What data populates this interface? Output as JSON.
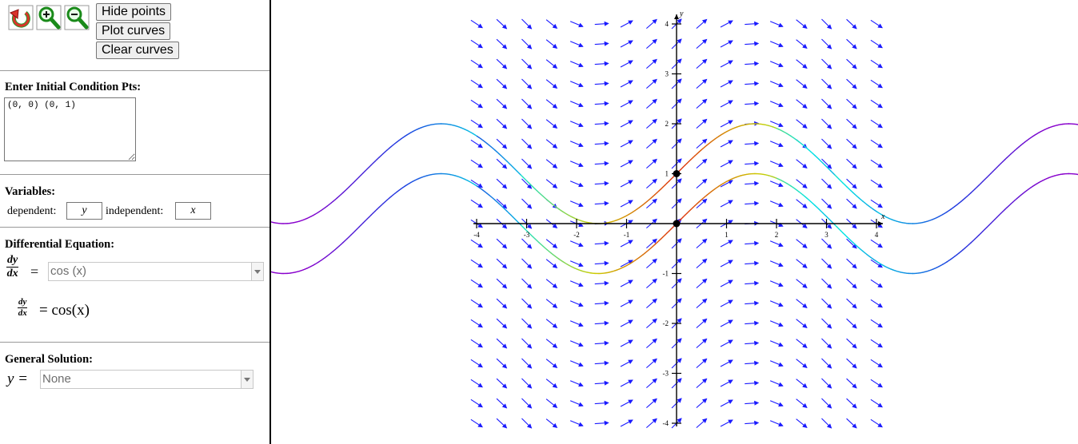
{
  "toolbar": {
    "icons": [
      "reset-icon",
      "zoom-in-icon",
      "zoom-out-icon"
    ],
    "hide_points_label": "Hide points",
    "plot_curves_label": "Plot curves",
    "clear_curves_label": "Clear curves"
  },
  "initial_conditions": {
    "title": "Enter Initial Condition Pts:",
    "value": "(0, 0) (0, 1)"
  },
  "variables": {
    "title": "Variables:",
    "dependent_label": "dependent:",
    "dependent_value": "y",
    "independent_label": "independent:",
    "independent_value": "x"
  },
  "equation": {
    "title": "Differential Equation:",
    "dy": "dy",
    "dx": "dx",
    "eq": "=",
    "input_value": "cos (x)",
    "rendered_rhs": "= cos(x)"
  },
  "general_solution": {
    "title": "General Solution:",
    "y_label": "y =",
    "value": "None"
  },
  "colors": {
    "vector_field": "#1a1aff",
    "axis": "#000000",
    "solution_gradient": [
      "#8800cc",
      "#1f3be0",
      "#00e5e5",
      "#cccc00",
      "#e03010"
    ]
  },
  "chart_data": {
    "type": "line",
    "title": "",
    "xlabel": "x",
    "ylabel": "y",
    "xlim": [
      -4,
      4
    ],
    "ylim": [
      -4,
      4
    ],
    "x_ticks": [
      "-4",
      "-3",
      "-2",
      "-1",
      "1",
      "2",
      "3",
      "4"
    ],
    "y_ticks": [
      "4",
      "3",
      "2",
      "1",
      "-1",
      "-2",
      "-3",
      "-4"
    ],
    "slope_field": "cos(x)",
    "initial_points": [
      [
        0,
        0
      ],
      [
        0,
        1
      ]
    ],
    "series": [
      {
        "initial_point": [
          0,
          0
        ],
        "function": "sin(x)"
      },
      {
        "initial_point": [
          0,
          1
        ],
        "function": "sin(x) + 1"
      }
    ]
  }
}
